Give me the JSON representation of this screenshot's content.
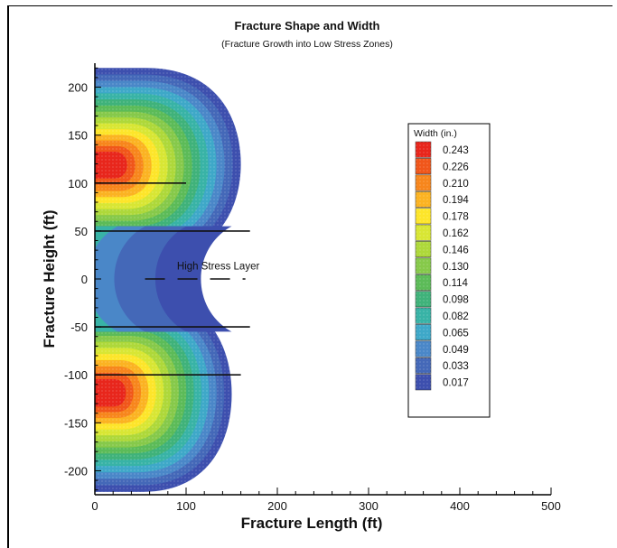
{
  "chart_data": {
    "type": "contour",
    "title": "Fracture Shape and Width",
    "subtitle": "(Fracture Growth into Low Stress Zones)",
    "xlabel": "Fracture Length (ft)",
    "ylabel": "Fracture Height (ft)",
    "xlim": [
      0,
      500
    ],
    "ylim": [
      -225,
      225
    ],
    "x_ticks": [
      0,
      100,
      200,
      300,
      400,
      500
    ],
    "y_ticks": [
      -200,
      -150,
      -100,
      -50,
      0,
      50,
      100,
      150,
      200
    ],
    "grid": false,
    "legend": {
      "title": "Width (in.)",
      "placement": "right",
      "levels": [
        {
          "value": "0.243",
          "color": "#e8261c"
        },
        {
          "value": "0.226",
          "color": "#f0561a"
        },
        {
          "value": "0.210",
          "color": "#f7861c"
        },
        {
          "value": "0.194",
          "color": "#fbb322"
        },
        {
          "value": "0.178",
          "color": "#fde52a"
        },
        {
          "value": "0.162",
          "color": "#d8e634"
        },
        {
          "value": "0.146",
          "color": "#aed83a"
        },
        {
          "value": "0.130",
          "color": "#86c94a"
        },
        {
          "value": "0.114",
          "color": "#5cbb58"
        },
        {
          "value": "0.098",
          "color": "#3fb27a"
        },
        {
          "value": "0.082",
          "color": "#38b3a6"
        },
        {
          "value": "0.065",
          "color": "#3ea8c8"
        },
        {
          "value": "0.049",
          "color": "#4a87c8"
        },
        {
          "value": "0.033",
          "color": "#4468b8"
        },
        {
          "value": "0.017",
          "color": "#3d4fae"
        }
      ]
    },
    "layer_boundaries_ft": [
      100,
      50,
      -50,
      -100
    ],
    "boundary_extent_ft": [
      100,
      170,
      170,
      160
    ],
    "annotations": [
      {
        "text": "High Stress Layer",
        "x": 90,
        "y": 10
      }
    ],
    "lobes": [
      {
        "name": "",
        "center_x": 15,
        "center_y": 120,
        "half_height": 100,
        "length": 160
      },
      {
        "name": "",
        "center_x": 15,
        "center_y": -120,
        "half_height": 102,
        "length": 150
      }
    ]
  }
}
